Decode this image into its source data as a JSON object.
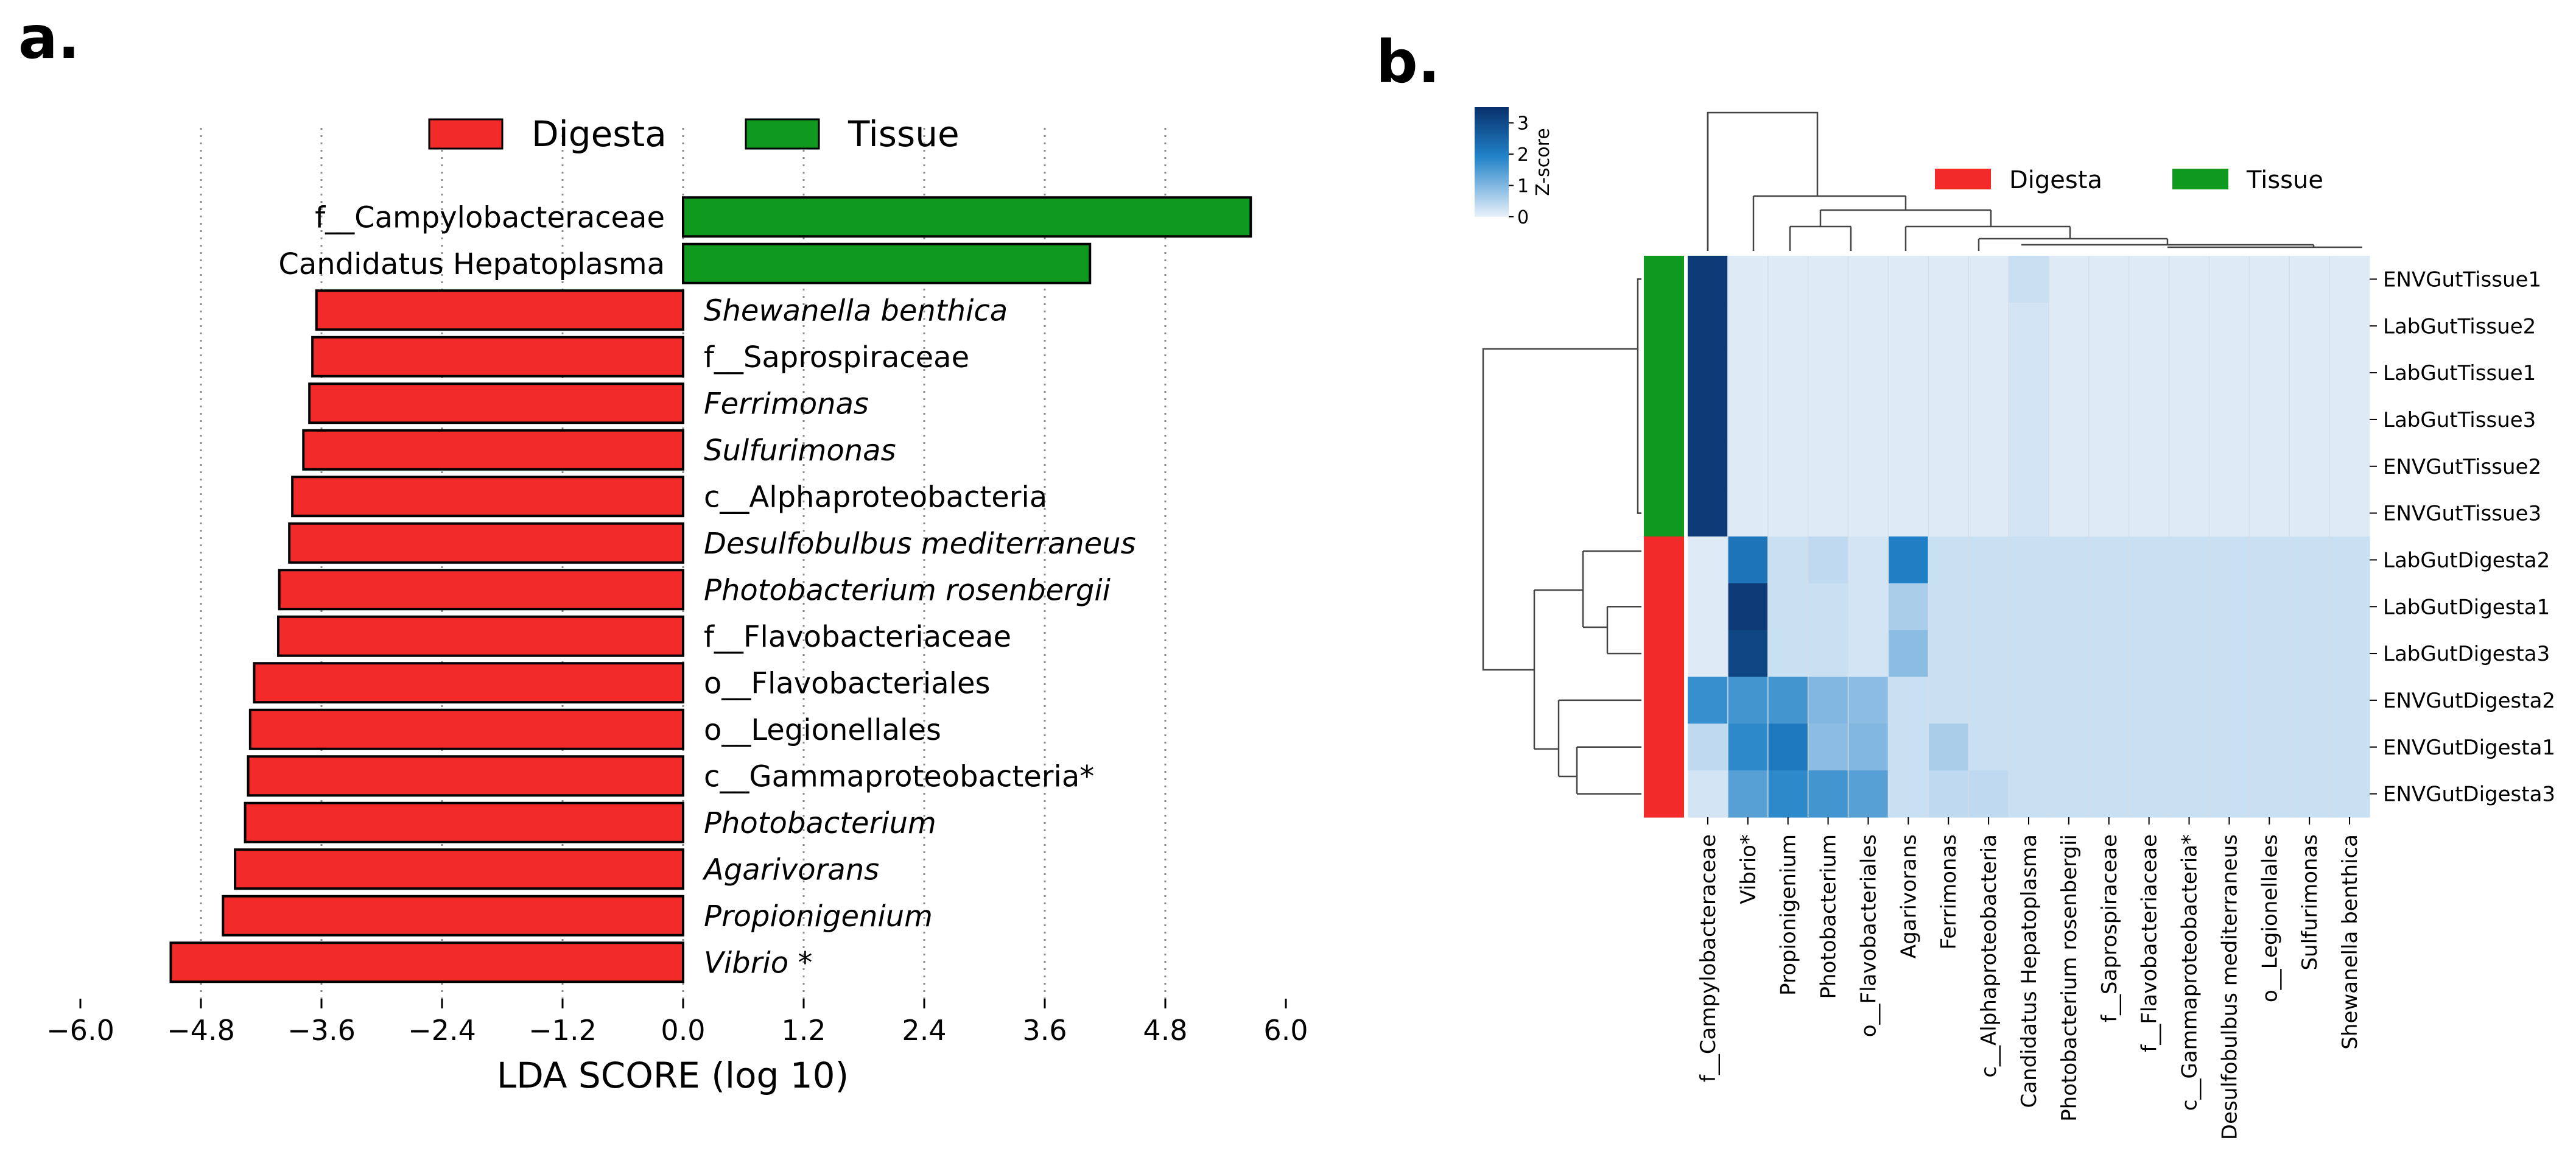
{
  "panel_a_label": "a.",
  "panel_b_label": "b.",
  "colors": {
    "digesta": "#f22a2a",
    "tissue": "#0f9a1f",
    "heat_low": "#e8f1fa",
    "heat_high": "#08306b"
  },
  "chart_data": [
    {
      "type": "bar",
      "orientation": "horizontal",
      "title": "",
      "xlabel": "LDA SCORE (log 10)",
      "ylabel": "",
      "xlim": [
        -6.0,
        6.0
      ],
      "xticks": [
        "−6.0",
        "−4.8",
        "−3.6",
        "−2.4",
        "−1.2",
        "0.0",
        "1.2",
        "2.4",
        "3.6",
        "4.8",
        "6.0"
      ],
      "xtick_values": [
        -6.0,
        -4.8,
        -3.6,
        -2.4,
        -1.2,
        0.0,
        1.2,
        2.4,
        3.6,
        4.8,
        6.0
      ],
      "grid": "vertical dotted",
      "legend": [
        {
          "label": "Digesta",
          "color_key": "digesta"
        },
        {
          "label": "Tissue",
          "color_key": "tissue"
        }
      ],
      "legend_position": "top",
      "bars": [
        {
          "label": "f__Campylobacteraceae",
          "value": 5.65,
          "group": "tissue",
          "italic": false
        },
        {
          "label": "Candidatus Hepatoplasma",
          "value": 4.05,
          "group": "tissue",
          "italic": false
        },
        {
          "label": "Shewanella benthica",
          "value": -3.65,
          "group": "digesta",
          "italic": true
        },
        {
          "label": "f__Saprospiraceae",
          "value": -3.69,
          "group": "digesta",
          "italic": false
        },
        {
          "label": "Ferrimonas",
          "value": -3.72,
          "group": "digesta",
          "italic": true
        },
        {
          "label": "Sulfurimonas",
          "value": -3.78,
          "group": "digesta",
          "italic": true
        },
        {
          "label": "c__Alphaproteobacteria",
          "value": -3.89,
          "group": "digesta",
          "italic": false
        },
        {
          "label": "Desulfobulbus mediterraneus",
          "value": -3.92,
          "group": "digesta",
          "italic": true
        },
        {
          "label": "Photobacterium rosenbergii",
          "value": -4.02,
          "group": "digesta",
          "italic": true
        },
        {
          "label": "f__Flavobacteriaceae",
          "value": -4.03,
          "group": "digesta",
          "italic": false
        },
        {
          "label": "o__Flavobacteriales",
          "value": -4.27,
          "group": "digesta",
          "italic": false
        },
        {
          "label": "o__Legionellales",
          "value": -4.31,
          "group": "digesta",
          "italic": false
        },
        {
          "label": "c__Gammaproteobacteria*",
          "value": -4.33,
          "group": "digesta",
          "italic": false
        },
        {
          "label": "Photobacterium",
          "value": -4.36,
          "group": "digesta",
          "italic": true
        },
        {
          "label": "Agarivorans",
          "value": -4.46,
          "group": "digesta",
          "italic": true
        },
        {
          "label": "Propionigenium",
          "value": -4.58,
          "group": "digesta",
          "italic": true
        },
        {
          "label": "Vibrio *",
          "value": -5.1,
          "group": "digesta",
          "italic": true
        }
      ]
    },
    {
      "type": "heatmap",
      "title": "",
      "colorbar_label": "Z-score",
      "colorbar_ticks": [
        "0",
        "1",
        "2",
        "3"
      ],
      "colorbar_tick_values": [
        0,
        1,
        2,
        3
      ],
      "legend": [
        {
          "label": "Digesta",
          "color_key": "digesta"
        },
        {
          "label": "Tissue",
          "color_key": "tissue"
        }
      ],
      "rows": [
        "ENVGutTissue1",
        "LabGutTissue2",
        "LabGutTissue1",
        "LabGutTissue3",
        "ENVGutTissue2",
        "ENVGutTissue3",
        "LabGutDigesta2",
        "LabGutDigesta1",
        "LabGutDigesta3",
        "ENVGutDigesta2",
        "ENVGutDigesta1",
        "ENVGutDigesta3"
      ],
      "row_groups": [
        "tissue",
        "tissue",
        "tissue",
        "tissue",
        "tissue",
        "tissue",
        "digesta",
        "digesta",
        "digesta",
        "digesta",
        "digesta",
        "digesta"
      ],
      "columns": [
        "f__Campylobacteraceae",
        "Vibrio*",
        "Propionigenium",
        "Photobacterium",
        "o__Flavobacteriales",
        "Agarivorans",
        "Ferrimonas",
        "c__Alphaproteobacteria",
        "Candidatus Hepatoplasma",
        "Photobacterium rosenbergii",
        "f__Saprospiraceae",
        "f__Flavobacteriaceae",
        "c__Gammaproteobacteria*",
        "Desulfobulbus mediterraneus",
        "o__Legionellales",
        "Sulfurimonas",
        "Shewanella benthica"
      ],
      "values": [
        [
          3.3,
          0.1,
          0.1,
          0.1,
          0.1,
          0.1,
          0.1,
          0.1,
          0.3,
          0.1,
          0.1,
          0.1,
          0.1,
          0.1,
          0.1,
          0.1,
          0.1
        ],
        [
          3.3,
          0.1,
          0.1,
          0.1,
          0.1,
          0.1,
          0.1,
          0.1,
          0.2,
          0.1,
          0.1,
          0.1,
          0.1,
          0.1,
          0.1,
          0.1,
          0.1
        ],
        [
          3.3,
          0.1,
          0.1,
          0.1,
          0.1,
          0.1,
          0.1,
          0.1,
          0.2,
          0.1,
          0.1,
          0.1,
          0.1,
          0.1,
          0.1,
          0.1,
          0.1
        ],
        [
          3.3,
          0.1,
          0.1,
          0.1,
          0.1,
          0.1,
          0.1,
          0.1,
          0.2,
          0.1,
          0.1,
          0.1,
          0.1,
          0.1,
          0.1,
          0.1,
          0.1
        ],
        [
          3.3,
          0.1,
          0.1,
          0.1,
          0.1,
          0.1,
          0.1,
          0.1,
          0.2,
          0.1,
          0.1,
          0.1,
          0.1,
          0.1,
          0.1,
          0.1,
          0.1
        ],
        [
          3.3,
          0.1,
          0.1,
          0.1,
          0.1,
          0.1,
          0.1,
          0.1,
          0.2,
          0.1,
          0.1,
          0.1,
          0.1,
          0.1,
          0.1,
          0.1,
          0.1
        ],
        [
          0.1,
          2.2,
          0.3,
          0.4,
          0.2,
          2.0,
          0.3,
          0.3,
          0.3,
          0.3,
          0.3,
          0.3,
          0.3,
          0.3,
          0.3,
          0.3,
          0.3
        ],
        [
          0.1,
          3.3,
          0.3,
          0.3,
          0.2,
          0.6,
          0.3,
          0.3,
          0.3,
          0.3,
          0.3,
          0.3,
          0.3,
          0.3,
          0.3,
          0.3,
          0.3
        ],
        [
          0.1,
          3.1,
          0.3,
          0.3,
          0.2,
          0.9,
          0.3,
          0.3,
          0.3,
          0.3,
          0.3,
          0.3,
          0.3,
          0.3,
          0.3,
          0.3,
          0.3
        ],
        [
          1.7,
          1.6,
          1.6,
          1.0,
          0.9,
          0.3,
          0.3,
          0.3,
          0.3,
          0.3,
          0.3,
          0.3,
          0.3,
          0.3,
          0.3,
          0.3,
          0.3
        ],
        [
          0.4,
          1.8,
          2.1,
          0.9,
          1.0,
          0.3,
          0.6,
          0.3,
          0.3,
          0.3,
          0.3,
          0.3,
          0.3,
          0.3,
          0.3,
          0.3,
          0.3
        ],
        [
          0.2,
          1.4,
          1.8,
          1.6,
          1.4,
          0.3,
          0.4,
          0.4,
          0.3,
          0.3,
          0.3,
          0.3,
          0.3,
          0.3,
          0.3,
          0.3,
          0.3
        ]
      ],
      "value_range": [
        0,
        3.5
      ]
    }
  ]
}
